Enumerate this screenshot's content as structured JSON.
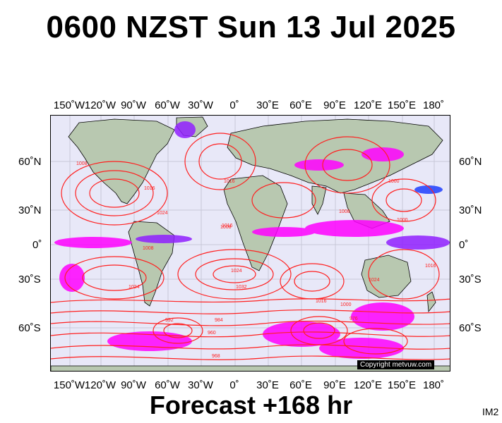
{
  "title": "0600 NZST Sun 13 Jul 2025",
  "forecast": "Forecast +168 hr",
  "image_id": "IM2",
  "copyright": "Copyright metvuw.com",
  "longitude_labels": [
    "150˚W",
    "120˚W",
    "90˚W",
    "60˚W",
    "30˚W",
    "0˚",
    "30˚E",
    "60˚E",
    "90˚E",
    "120˚E",
    "150˚E",
    "180˚"
  ],
  "latitude_labels": [
    "60˚N",
    "30˚N",
    "0˚",
    "30˚S",
    "60˚S"
  ],
  "isobar_labels": [
    "1008",
    "1016",
    "1024",
    "1016",
    "1008",
    "1008",
    "1024",
    "1032",
    "1024",
    "1016",
    "1000",
    "992",
    "984",
    "976",
    "968",
    "960",
    "1000",
    "1008",
    "1016",
    "1024",
    "1016",
    "1000"
  ],
  "colors": {
    "ocean": "#e8e8f8",
    "land": "#b8c8b0",
    "isobar": "#ff2020",
    "rain_magenta": "#ff00ff",
    "rain_purple": "#9020ff",
    "rain_blue": "#2040ff",
    "grid": "#c8c8d8"
  }
}
